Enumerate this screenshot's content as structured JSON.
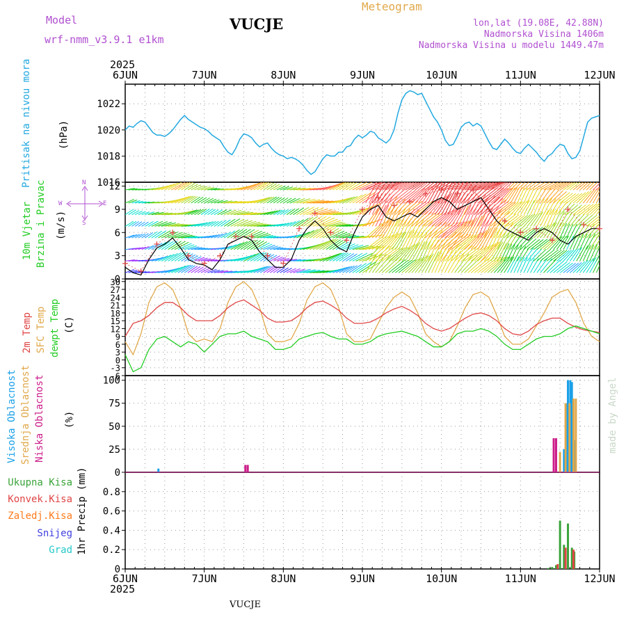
{
  "header": {
    "model_label": "Model",
    "model_name": "wrf-nmm_v3.9.1 e1km",
    "station": "VUCJE",
    "product": "Meteogram",
    "lonlat": "lon,lat (19.08E, 42.88N)",
    "elevation": "Nadmorska Visina 1406m",
    "elevation_model": "Nadmorska Visina u modelu 1449.47m",
    "footer_station": "VUCJE",
    "watermark": "made by Angel"
  },
  "colors": {
    "pressure": "#22a8e0",
    "temp2m": "#e04545",
    "sfc": "#e0a84a",
    "dewpt": "#22cc22",
    "high_cloud": "#1aa0e8",
    "mid_cloud": "#e0a84a",
    "low_cloud": "#cc1e8a",
    "total_precip": "#3aa33a",
    "conv_precip": "#e04545",
    "frozen_precip": "#ff7a1a",
    "snow": "#4040e0",
    "hail": "#22c8c8",
    "label_purple": "#b050d0",
    "gust": "#e04545"
  },
  "chart_data": [
    {
      "type": "line",
      "panel": "pressure",
      "ylabel_lines": [
        "Pritisak na nivou mora",
        "(hPa)"
      ],
      "ylim": [
        1016,
        1023.5
      ],
      "yticks": [
        1016,
        1018,
        1020,
        1022
      ],
      "x_top_year": "2025",
      "x_ticks": [
        "6JUN",
        "7JUN",
        "8JUN",
        "9JUN",
        "10JUN",
        "11JUN",
        "12JUN"
      ],
      "series": [
        {
          "x": [
            0,
            0.05,
            0.1,
            0.15,
            0.2,
            0.25,
            0.3,
            0.35,
            0.4,
            0.45,
            0.5,
            0.55,
            0.6,
            0.65,
            0.7,
            0.75,
            0.8,
            0.85,
            0.9,
            0.95,
            1,
            1.05,
            1.1,
            1.15,
            1.2,
            1.25,
            1.3,
            1.35,
            1.4,
            1.45,
            1.5,
            1.55,
            1.6,
            1.65,
            1.7,
            1.75,
            1.8,
            1.85,
            1.9,
            1.95,
            2,
            2.05,
            2.1,
            2.15,
            2.2,
            2.25,
            2.3,
            2.35,
            2.4,
            2.45,
            2.5,
            2.55,
            2.6,
            2.65,
            2.7,
            2.75,
            2.8,
            2.85,
            2.9,
            2.95,
            3,
            3.05,
            3.1,
            3.15,
            3.2,
            3.25,
            3.3,
            3.35,
            3.4,
            3.45,
            3.5,
            3.55,
            3.6,
            3.65,
            3.7,
            3.75,
            3.8,
            3.85,
            3.9,
            3.95,
            4,
            4.05,
            4.1,
            4.15,
            4.2,
            4.25,
            4.3,
            4.35,
            4.4,
            4.45,
            4.5,
            4.55,
            4.6,
            4.65,
            4.7,
            4.75,
            4.8,
            4.85,
            4.9,
            4.95,
            5,
            5.05,
            5.1,
            5.15,
            5.2,
            5.25,
            5.3,
            5.35,
            5.4,
            5.45,
            5.5,
            5.55,
            5.6,
            5.65,
            5.7,
            5.75,
            5.8,
            5.85,
            5.9,
            5.95,
            6
          ],
          "y": [
            1020.0,
            1020.3,
            1020.2,
            1020.5,
            1020.7,
            1020.6,
            1020.2,
            1019.8,
            1019.6,
            1019.6,
            1019.5,
            1019.7,
            1020.0,
            1020.4,
            1020.8,
            1021.1,
            1020.8,
            1020.6,
            1020.4,
            1020.2,
            1020.1,
            1019.9,
            1019.6,
            1019.4,
            1019.2,
            1018.7,
            1018.3,
            1018.1,
            1018.6,
            1019.3,
            1019.7,
            1019.6,
            1019.4,
            1019.0,
            1018.7,
            1018.9,
            1019.0,
            1018.6,
            1018.3,
            1018.1,
            1018.0,
            1017.8,
            1017.9,
            1017.8,
            1017.6,
            1017.3,
            1016.9,
            1016.6,
            1016.8,
            1017.3,
            1017.8,
            1018.1,
            1018.0,
            1018.0,
            1018.3,
            1018.3,
            1018.7,
            1018.8,
            1019.3,
            1019.6,
            1019.4,
            1019.6,
            1019.9,
            1019.8,
            1019.4,
            1019.2,
            1019.0,
            1019.3,
            1020.0,
            1021.3,
            1022.3,
            1022.8,
            1023.0,
            1022.9,
            1022.7,
            1022.8,
            1022.2,
            1021.6,
            1021.0,
            1020.6,
            1020.0,
            1019.2,
            1018.8,
            1018.9,
            1019.5,
            1020.2,
            1020.5,
            1020.6,
            1020.3,
            1020.5,
            1020.3,
            1019.7,
            1019.1,
            1018.6,
            1018.5,
            1018.9,
            1019.3,
            1019.0,
            1018.6,
            1018.3,
            1018.2,
            1018.6,
            1018.9,
            1018.6,
            1018.3,
            1017.9,
            1017.6,
            1018.0,
            1018.2,
            1018.6,
            1018.9,
            1018.8,
            1018.2,
            1017.8,
            1017.9,
            1018.4,
            1019.5,
            1020.6,
            1020.9,
            1021.0,
            1021.1
          ]
        }
      ]
    },
    {
      "type": "line",
      "panel": "wind",
      "ylabel_lines": [
        "10m Vjetar",
        "Brzina i Pravac",
        "(m/s)"
      ],
      "compass": {
        "n": "N",
        "s": "S",
        "w": "W",
        "e": "E"
      },
      "ylim": [
        0,
        12.5
      ],
      "yticks": [
        0,
        3,
        6,
        9,
        12
      ],
      "speed_bins_colors": [
        "#2a2aff",
        "#9b30ff",
        "#1a9eff",
        "#00ddcc",
        "#19c819",
        "#9ed81e",
        "#e8d81e",
        "#ffa01e",
        "#ff5a5a",
        "#e83232"
      ],
      "series": [
        {
          "name": "speed",
          "x": [
            0,
            0.1,
            0.2,
            0.3,
            0.4,
            0.5,
            0.6,
            0.7,
            0.8,
            0.9,
            1,
            1.1,
            1.2,
            1.3,
            1.4,
            1.5,
            1.6,
            1.7,
            1.8,
            1.9,
            2,
            2.1,
            2.2,
            2.3,
            2.4,
            2.5,
            2.6,
            2.7,
            2.8,
            2.9,
            3,
            3.1,
            3.2,
            3.3,
            3.4,
            3.5,
            3.6,
            3.7,
            3.8,
            3.9,
            4,
            4.1,
            4.2,
            4.3,
            4.4,
            4.5,
            4.6,
            4.7,
            4.8,
            4.9,
            5,
            5.1,
            5.2,
            5.3,
            5.4,
            5.5,
            5.6,
            5.7,
            5.8,
            5.9,
            6
          ],
          "y": [
            1.5,
            0.8,
            0.5,
            2.5,
            4.0,
            4.5,
            5.3,
            4.0,
            2.5,
            2.0,
            1.8,
            1.2,
            2.5,
            4.5,
            5.0,
            5.5,
            5.0,
            3.5,
            2.5,
            1.5,
            1.5,
            2.5,
            5.0,
            6.5,
            7.5,
            6.5,
            5.0,
            4.0,
            3.5,
            6.0,
            8.0,
            9.0,
            9.5,
            8.0,
            7.5,
            8.0,
            8.5,
            8.0,
            9.0,
            10.0,
            10.5,
            10.0,
            9.0,
            9.5,
            10.0,
            10.5,
            9.0,
            7.5,
            6.5,
            6.0,
            5.5,
            5.0,
            6.0,
            6.5,
            6.0,
            5.0,
            4.5,
            5.5,
            6.0,
            6.5,
            6.5
          ]
        },
        {
          "name": "gust",
          "x": [
            0,
            0.2,
            0.4,
            0.6,
            0.8,
            1,
            1.2,
            1.4,
            1.6,
            1.8,
            2,
            2.2,
            2.4,
            2.6,
            2.8,
            3,
            3.2,
            3.4,
            3.6,
            3.8,
            4,
            4.2,
            4.4,
            4.6,
            4.8,
            5,
            5.2,
            5.4,
            5.6,
            5.8,
            6
          ],
          "y": [
            2.0,
            1.0,
            4.5,
            6.0,
            3.0,
            2.0,
            3.0,
            5.5,
            5.5,
            3.0,
            2.0,
            6.5,
            8.5,
            6.0,
            5.0,
            9.0,
            10.5,
            9.5,
            10.0,
            11.0,
            11.5,
            11.0,
            11.5,
            9.0,
            7.5,
            6.0,
            6.5,
            5.0,
            9.0,
            7.0,
            6.5
          ]
        }
      ]
    },
    {
      "type": "line",
      "panel": "temperature",
      "ylabel_lines": [
        "2m Temp",
        "SFC Temp",
        "dewpt Temp",
        "(C)"
      ],
      "ylim": [
        -6,
        31
      ],
      "yticks": [
        -6,
        -3,
        0,
        3,
        6,
        9,
        12,
        15,
        18,
        21,
        24,
        27,
        30
      ],
      "series": [
        {
          "name": "2m Temp",
          "x": [
            0,
            0.1,
            0.2,
            0.3,
            0.4,
            0.5,
            0.6,
            0.7,
            0.8,
            0.9,
            1,
            1.1,
            1.2,
            1.3,
            1.4,
            1.5,
            1.6,
            1.7,
            1.8,
            1.9,
            2,
            2.1,
            2.2,
            2.3,
            2.4,
            2.5,
            2.6,
            2.7,
            2.8,
            2.9,
            3,
            3.1,
            3.2,
            3.3,
            3.4,
            3.5,
            3.6,
            3.7,
            3.8,
            3.9,
            4,
            4.1,
            4.2,
            4.3,
            4.4,
            4.5,
            4.6,
            4.7,
            4.8,
            4.9,
            5,
            5.1,
            5.2,
            5.3,
            5.4,
            5.5,
            5.6,
            5.7,
            5.8,
            5.9,
            6
          ],
          "y": [
            9,
            14,
            15,
            17,
            20,
            22,
            22,
            20,
            17,
            15,
            15,
            15,
            17,
            20,
            22,
            23,
            21,
            19,
            16,
            14.5,
            14.5,
            15,
            17,
            20,
            22,
            22.5,
            21,
            19,
            16,
            14,
            14,
            14.5,
            16,
            18,
            19.5,
            20.5,
            19,
            17,
            14,
            12,
            11,
            12,
            14,
            16,
            17.5,
            18,
            17,
            15,
            12,
            10,
            9.5,
            11,
            13.5,
            15,
            16,
            16,
            14,
            12.5,
            11.5,
            11,
            10.5
          ]
        },
        {
          "name": "SFC Temp",
          "x": [
            0,
            0.1,
            0.2,
            0.3,
            0.4,
            0.5,
            0.6,
            0.7,
            0.8,
            0.9,
            1,
            1.1,
            1.2,
            1.3,
            1.4,
            1.5,
            1.6,
            1.7,
            1.8,
            1.9,
            2,
            2.1,
            2.2,
            2.3,
            2.4,
            2.5,
            2.6,
            2.7,
            2.8,
            2.9,
            3,
            3.1,
            3.2,
            3.3,
            3.4,
            3.5,
            3.6,
            3.7,
            3.8,
            3.9,
            4,
            4.1,
            4.2,
            4.3,
            4.4,
            4.5,
            4.6,
            4.7,
            4.8,
            4.9,
            5,
            5.1,
            5.2,
            5.3,
            5.4,
            5.5,
            5.6,
            5.7,
            5.8,
            5.9,
            6
          ],
          "y": [
            7,
            2,
            10,
            22,
            28,
            29.5,
            27,
            20,
            10,
            7,
            8,
            7,
            12,
            22,
            28,
            30,
            27,
            20,
            10,
            7,
            7,
            8,
            14,
            23,
            28,
            29.5,
            27,
            20,
            10,
            7,
            7,
            8,
            14,
            20,
            24,
            26,
            24,
            18,
            10,
            7,
            5,
            7,
            13,
            20,
            25,
            26,
            24,
            17,
            9,
            6,
            6,
            8,
            13,
            18,
            24,
            26,
            27,
            22,
            14,
            9,
            7
          ]
        },
        {
          "name": "dewpt Temp",
          "x": [
            0,
            0.1,
            0.2,
            0.3,
            0.4,
            0.5,
            0.6,
            0.7,
            0.8,
            0.9,
            1,
            1.1,
            1.2,
            1.3,
            1.4,
            1.5,
            1.6,
            1.7,
            1.8,
            1.9,
            2,
            2.1,
            2.2,
            2.3,
            2.4,
            2.5,
            2.6,
            2.7,
            2.8,
            2.9,
            3,
            3.1,
            3.2,
            3.3,
            3.4,
            3.5,
            3.6,
            3.7,
            3.8,
            3.9,
            4,
            4.1,
            4.2,
            4.3,
            4.4,
            4.5,
            4.6,
            4.7,
            4.8,
            4.9,
            5,
            5.1,
            5.2,
            5.3,
            5.4,
            5.5,
            5.6,
            5.7,
            5.8,
            5.9,
            6
          ],
          "y": [
            2,
            -4.5,
            -3,
            4,
            8,
            9,
            7,
            5,
            7,
            6,
            3,
            6,
            9,
            10,
            10,
            11,
            9,
            8,
            7,
            4,
            4,
            5,
            8,
            9,
            10,
            10.5,
            9,
            8,
            8,
            6,
            6,
            7,
            9,
            10,
            10.5,
            11,
            10,
            9,
            7,
            5,
            5,
            7,
            10,
            11,
            11,
            12,
            11,
            9,
            6,
            4,
            4,
            6,
            8,
            9,
            9,
            10,
            12,
            13,
            12,
            11,
            10
          ]
        }
      ]
    },
    {
      "type": "bar",
      "panel": "clouds",
      "ylabel_lines": [
        "Visoka Oblacnost",
        "Srednja Oblacnost",
        "Niska Oblacnost",
        "(%)"
      ],
      "ylim": [
        0,
        105
      ],
      "yticks": [
        0,
        25,
        50,
        75,
        100
      ],
      "series": [
        {
          "name": "Visoka Oblacnost",
          "x": [
            0.42,
            5.55,
            5.58,
            5.6,
            5.63,
            5.65,
            5.68
          ],
          "y": [
            4,
            25,
            75,
            100,
            100,
            98,
            35
          ]
        },
        {
          "name": "Srednja Oblacnost",
          "x": [
            5.5,
            5.57,
            5.62,
            5.67,
            5.7
          ],
          "y": [
            22,
            75,
            75,
            80,
            80
          ]
        },
        {
          "name": "Niska Oblacnost",
          "x": [
            1.52,
            1.55,
            5.42,
            5.45
          ],
          "y": [
            8,
            8,
            37,
            37
          ]
        }
      ]
    },
    {
      "type": "bar",
      "panel": "precip",
      "ylabel_lines": [
        "Ukupna Kisa",
        "Konvek.Kisa",
        "Zaledj.Kisa",
        "Snijeg",
        "Grad",
        "1hr Precip (mm)"
      ],
      "ylim": [
        0,
        1.0
      ],
      "yticks": [
        0,
        0.2,
        0.4,
        0.6,
        0.8
      ],
      "x_bottom_year": "2025",
      "x_ticks": [
        "6JUN",
        "7JUN",
        "8JUN",
        "9JUN",
        "10JUN",
        "11JUN",
        "12JUN"
      ],
      "series": [
        {
          "name": "Ukupna Kisa",
          "x": [
            5.35,
            5.4,
            5.45,
            5.5,
            5.55,
            5.6,
            5.65,
            5.68
          ],
          "y": [
            0.01,
            0.02,
            0.04,
            0.5,
            0.25,
            0.47,
            0.22,
            0.18
          ]
        },
        {
          "name": "Konvek.Kisa",
          "x": [
            5.47,
            5.57,
            5.67
          ],
          "y": [
            0.05,
            0.22,
            0.2
          ]
        }
      ]
    }
  ]
}
